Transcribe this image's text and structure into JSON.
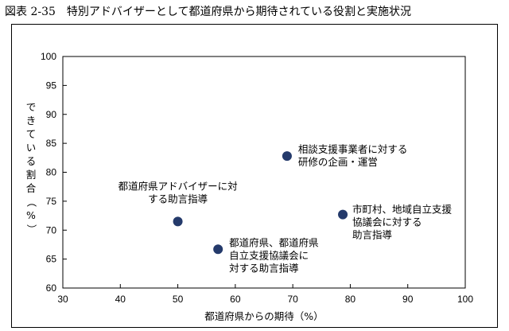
{
  "title": "図表 2-35　特別アドバイザーとして都道府県から期待されている役割と実施状況",
  "chart_data": {
    "type": "scatter",
    "title": "図表 2-35　特別アドバイザーとして都道府県から期待されている役割と実施状況",
    "xlabel": "都道府県からの期待（%）",
    "ylabel": "できている割合（%）",
    "xlim": [
      30,
      100
    ],
    "ylim": [
      60,
      100
    ],
    "xticks": [
      30,
      40,
      50,
      60,
      70,
      80,
      90,
      100
    ],
    "yticks": [
      60,
      65,
      70,
      75,
      80,
      85,
      90,
      95,
      100
    ],
    "grid": false,
    "marker_color": "#243a6b",
    "points": [
      {
        "x": 50,
        "y": 71.5,
        "label": [
          "都道府県アドバイザーに対",
          "する助言指導"
        ]
      },
      {
        "x": 57,
        "y": 66.7,
        "label": [
          "都道府県、都道府県",
          "自立支援協議会に",
          "対する助言指導"
        ]
      },
      {
        "x": 69,
        "y": 82.8,
        "label": [
          "相談支援事業者に対する",
          "研修の企画・運営"
        ]
      },
      {
        "x": 78.7,
        "y": 72.7,
        "label": [
          "市町村、地域自立支援",
          "協議会に対する",
          "助言指導"
        ]
      }
    ]
  }
}
